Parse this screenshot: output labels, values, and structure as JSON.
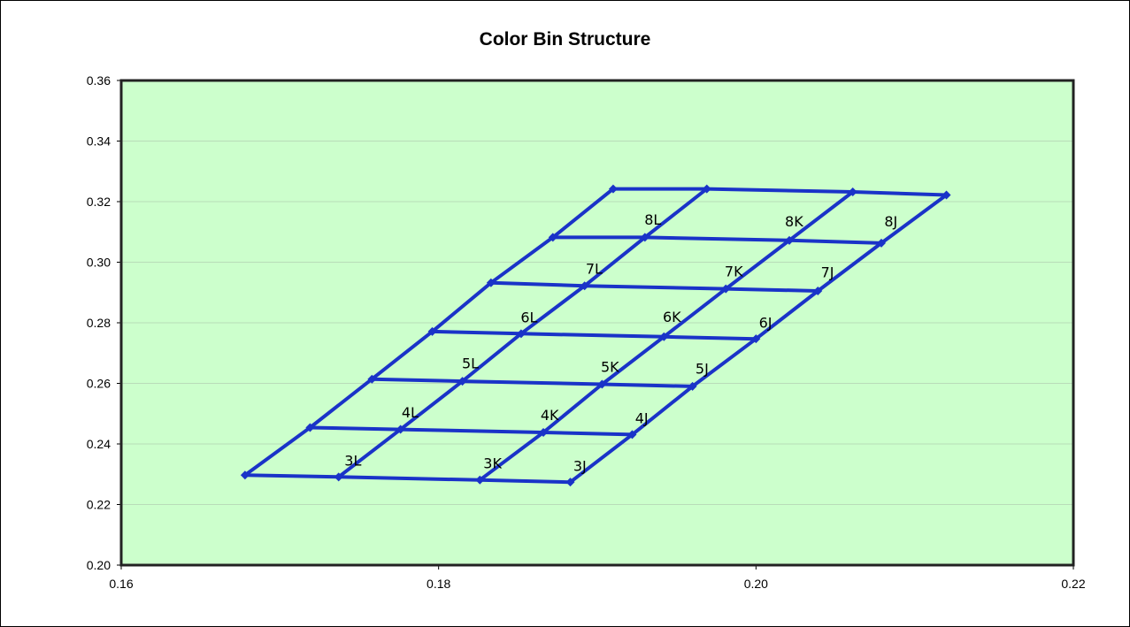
{
  "chart_data": {
    "type": "scatter",
    "title": "Color Bin Structure",
    "xlabel": "",
    "ylabel": "",
    "xlim": [
      0.16,
      0.22
    ],
    "ylim": [
      0.2,
      0.36
    ],
    "x_ticks": [
      "0.16",
      "0.18",
      "0.20",
      "0.22"
    ],
    "y_ticks": [
      "0.20",
      "0.22",
      "0.24",
      "0.26",
      "0.28",
      "0.30",
      "0.32",
      "0.34",
      "0.36"
    ],
    "grid": "horizontal",
    "plot_background": "#ccffcc",
    "line_color": "#1a33c8",
    "bin_grid": {
      "rows": [
        "3",
        "4",
        "5",
        "6",
        "7",
        "8"
      ],
      "columns": [
        "L",
        "K",
        "J"
      ],
      "lines": [
        [
          [
            0.1678,
            0.2297
          ],
          [
            0.1737,
            0.2291
          ],
          [
            0.1826,
            0.2281
          ],
          [
            0.1883,
            0.2274
          ]
        ],
        [
          [
            0.1719,
            0.2454
          ],
          [
            0.1776,
            0.2448
          ],
          [
            0.1866,
            0.2438
          ],
          [
            0.1922,
            0.2431
          ]
        ],
        [
          [
            0.1758,
            0.2614
          ],
          [
            0.1815,
            0.2607
          ],
          [
            0.1903,
            0.2597
          ],
          [
            0.196,
            0.259
          ]
        ],
        [
          [
            0.1796,
            0.2771
          ],
          [
            0.1852,
            0.2764
          ],
          [
            0.1942,
            0.2754
          ],
          [
            0.2,
            0.2747
          ]
        ],
        [
          [
            0.1833,
            0.2932
          ],
          [
            0.1892,
            0.2922
          ],
          [
            0.1981,
            0.2912
          ],
          [
            0.2039,
            0.2905
          ]
        ],
        [
          [
            0.1872,
            0.3082
          ],
          [
            0.193,
            0.3082
          ],
          [
            0.2021,
            0.3072
          ],
          [
            0.2079,
            0.3063
          ]
        ],
        [
          [
            0.191,
            0.3242
          ],
          [
            0.1969,
            0.3242
          ],
          [
            0.2061,
            0.3232
          ],
          [
            0.212,
            0.3222
          ]
        ]
      ]
    },
    "bins": [
      {
        "label": "3L",
        "x": 0.1746,
        "y": 0.2346
      },
      {
        "label": "3K",
        "x": 0.1834,
        "y": 0.2337
      },
      {
        "label": "3J",
        "x": 0.1889,
        "y": 0.2329
      },
      {
        "label": "4L",
        "x": 0.1782,
        "y": 0.2505
      },
      {
        "label": "4K",
        "x": 0.187,
        "y": 0.2497
      },
      {
        "label": "4J",
        "x": 0.1928,
        "y": 0.2486
      },
      {
        "label": "5L",
        "x": 0.182,
        "y": 0.2667
      },
      {
        "label": "5K",
        "x": 0.1908,
        "y": 0.2655
      },
      {
        "label": "5J",
        "x": 0.1966,
        "y": 0.2649
      },
      {
        "label": "6L",
        "x": 0.1857,
        "y": 0.2819
      },
      {
        "label": "6K",
        "x": 0.1947,
        "y": 0.2821
      },
      {
        "label": "6J",
        "x": 0.2006,
        "y": 0.2801
      },
      {
        "label": "7L",
        "x": 0.1898,
        "y": 0.2979
      },
      {
        "label": "7K",
        "x": 0.1986,
        "y": 0.2971
      },
      {
        "label": "7J",
        "x": 0.2045,
        "y": 0.2968
      },
      {
        "label": "8L",
        "x": 0.1935,
        "y": 0.3141
      },
      {
        "label": "8K",
        "x": 0.2024,
        "y": 0.3136
      },
      {
        "label": "8J",
        "x": 0.2085,
        "y": 0.3136
      }
    ]
  }
}
